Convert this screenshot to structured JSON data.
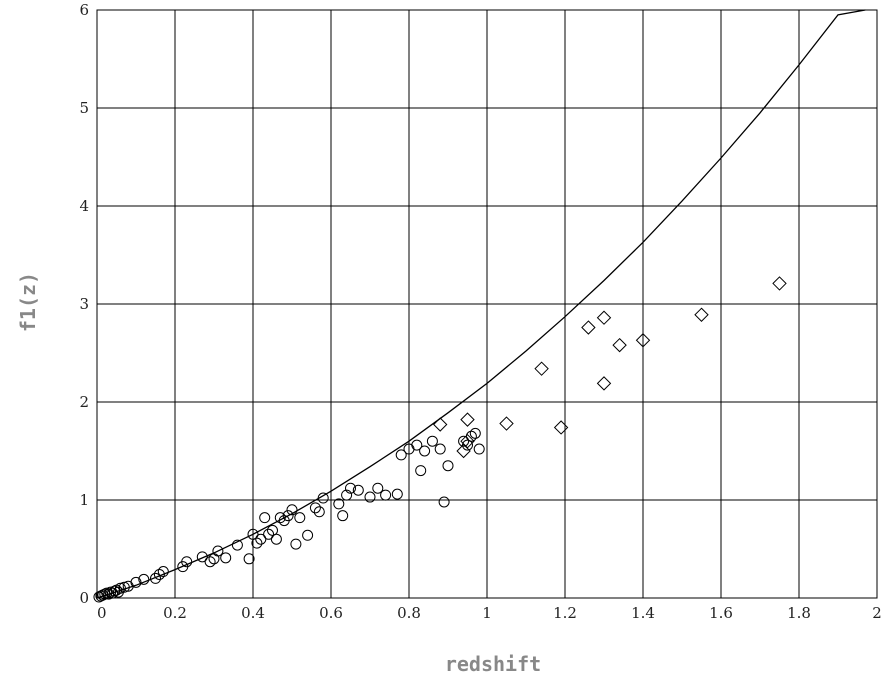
{
  "chart_data": {
    "type": "scatter",
    "title": "",
    "xlabel": "redshift",
    "ylabel": "f1(z)",
    "xlim": [
      0,
      2
    ],
    "ylim": [
      0,
      6
    ],
    "grid": true,
    "legend": "none",
    "x_ticks": [
      0,
      0.2,
      0.4,
      0.6,
      0.8,
      1,
      1.2,
      1.4,
      1.6,
      1.8,
      2
    ],
    "x_tick_labels": [
      "0",
      "0.2",
      "0.4",
      "0.6",
      "0.8",
      "1",
      "1.2",
      "1.4",
      "1.6",
      "1.8",
      "2"
    ],
    "y_ticks": [
      0,
      1,
      2,
      3,
      4,
      5,
      6
    ],
    "y_tick_labels": [
      "0",
      "1",
      "2",
      "3",
      "4",
      "5",
      "6"
    ],
    "series": [
      {
        "type": "scatter",
        "marker": "circle",
        "points": [
          [
            0.005,
            0.01
          ],
          [
            0.01,
            0.02
          ],
          [
            0.015,
            0.03
          ],
          [
            0.02,
            0.04
          ],
          [
            0.025,
            0.05
          ],
          [
            0.03,
            0.04
          ],
          [
            0.035,
            0.06
          ],
          [
            0.04,
            0.05
          ],
          [
            0.045,
            0.07
          ],
          [
            0.05,
            0.08
          ],
          [
            0.055,
            0.06
          ],
          [
            0.06,
            0.1
          ],
          [
            0.07,
            0.11
          ],
          [
            0.08,
            0.12
          ],
          [
            0.1,
            0.16
          ],
          [
            0.12,
            0.19
          ],
          [
            0.15,
            0.2
          ],
          [
            0.16,
            0.24
          ],
          [
            0.17,
            0.27
          ],
          [
            0.22,
            0.32
          ],
          [
            0.23,
            0.37
          ],
          [
            0.27,
            0.42
          ],
          [
            0.29,
            0.37
          ],
          [
            0.3,
            0.4
          ],
          [
            0.31,
            0.48
          ],
          [
            0.33,
            0.41
          ],
          [
            0.36,
            0.54
          ],
          [
            0.39,
            0.4
          ],
          [
            0.4,
            0.65
          ],
          [
            0.41,
            0.56
          ],
          [
            0.42,
            0.6
          ],
          [
            0.43,
            0.82
          ],
          [
            0.44,
            0.65
          ],
          [
            0.45,
            0.69
          ],
          [
            0.46,
            0.6
          ],
          [
            0.47,
            0.82
          ],
          [
            0.48,
            0.79
          ],
          [
            0.49,
            0.84
          ],
          [
            0.5,
            0.9
          ],
          [
            0.51,
            0.55
          ],
          [
            0.52,
            0.82
          ],
          [
            0.54,
            0.64
          ],
          [
            0.56,
            0.92
          ],
          [
            0.57,
            0.88
          ],
          [
            0.58,
            1.02
          ],
          [
            0.62,
            0.96
          ],
          [
            0.63,
            0.84
          ],
          [
            0.64,
            1.05
          ],
          [
            0.65,
            1.12
          ],
          [
            0.67,
            1.1
          ],
          [
            0.7,
            1.03
          ],
          [
            0.72,
            1.12
          ],
          [
            0.74,
            1.05
          ],
          [
            0.77,
            1.06
          ],
          [
            0.78,
            1.46
          ],
          [
            0.8,
            1.52
          ],
          [
            0.82,
            1.56
          ],
          [
            0.83,
            1.3
          ],
          [
            0.84,
            1.5
          ],
          [
            0.86,
            1.6
          ],
          [
            0.88,
            1.52
          ],
          [
            0.89,
            0.98
          ],
          [
            0.9,
            1.35
          ],
          [
            0.94,
            1.6
          ],
          [
            0.95,
            1.56
          ],
          [
            0.96,
            1.65
          ],
          [
            0.97,
            1.68
          ],
          [
            0.98,
            1.52
          ]
        ]
      },
      {
        "type": "scatter",
        "marker": "diamond",
        "points": [
          [
            0.88,
            1.77
          ],
          [
            0.94,
            1.5
          ],
          [
            0.95,
            1.6
          ],
          [
            0.95,
            1.82
          ],
          [
            1.05,
            1.78
          ],
          [
            1.14,
            2.34
          ],
          [
            1.19,
            1.74
          ],
          [
            1.26,
            2.76
          ],
          [
            1.3,
            2.86
          ],
          [
            1.3,
            2.19
          ],
          [
            1.34,
            2.58
          ],
          [
            1.4,
            2.63
          ],
          [
            1.55,
            2.89
          ],
          [
            1.75,
            3.21
          ]
        ]
      },
      {
        "type": "line",
        "points": [
          [
            0,
            0
          ],
          [
            0.1,
            0.13
          ],
          [
            0.2,
            0.29
          ],
          [
            0.3,
            0.46
          ],
          [
            0.4,
            0.65
          ],
          [
            0.5,
            0.86
          ],
          [
            0.6,
            1.09
          ],
          [
            0.7,
            1.34
          ],
          [
            0.8,
            1.6
          ],
          [
            0.9,
            1.89
          ],
          [
            1.0,
            2.19
          ],
          [
            1.1,
            2.52
          ],
          [
            1.2,
            2.87
          ],
          [
            1.3,
            3.24
          ],
          [
            1.4,
            3.63
          ],
          [
            1.5,
            4.05
          ],
          [
            1.6,
            4.49
          ],
          [
            1.7,
            4.95
          ],
          [
            1.8,
            5.44
          ],
          [
            1.9,
            5.95
          ],
          [
            1.97,
            6.0
          ]
        ]
      }
    ]
  }
}
